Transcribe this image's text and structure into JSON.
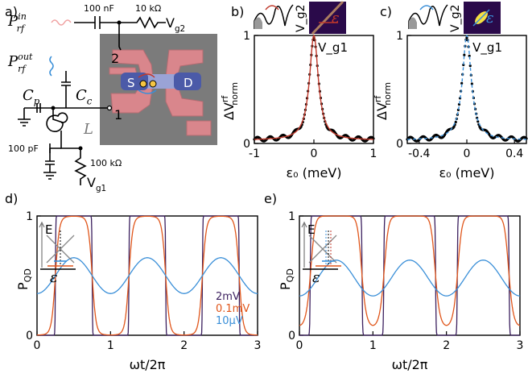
{
  "panels": {
    "a": "a)",
    "b": "b)",
    "c": "c)",
    "d": "d)",
    "e": "e)"
  },
  "circuit": {
    "p_in": "P",
    "p_in_sup": "in",
    "p_in_sub": "rf",
    "p_out": "P",
    "p_out_sup": "out",
    "p_out_sub": "rf",
    "cap_top": "100 nF",
    "res_top": "10 kΩ",
    "vg2": "V",
    "vg2_sub": "g2",
    "cp": "C",
    "cp_sub": "p",
    "cc": "C",
    "cc_sub": "c",
    "inductor": "L",
    "cap_bottom": "100 pF",
    "res_bottom": "100 kΩ",
    "vg1": "V",
    "vg1_sub": "g1",
    "gate1": "1",
    "gate2": "2",
    "source": "S",
    "drain": "D"
  },
  "colors": {
    "red": "#c0392b",
    "blue": "#3a8fd8",
    "orange": "#e0561b",
    "purple": "#3b1f5e",
    "gate_pink": "#d9868c"
  },
  "chart_data": [
    {
      "panel": "b",
      "type": "line",
      "xlabel": "ε₀ (meV)",
      "ylabel": "ΔV_norm^rf",
      "xlim": [
        -1,
        1
      ],
      "ylim": [
        0,
        1
      ],
      "xticks": [
        "-1",
        "0",
        "1"
      ],
      "yticks": [
        "0",
        "1"
      ],
      "inset_label_y": "V_g2",
      "inset_label_x": "V_g1",
      "inset_symbol": "ε",
      "series": [
        {
          "kind": "data-points",
          "color": "#000000",
          "peak_x": 0.0,
          "fwhm": 0.18
        },
        {
          "kind": "fit",
          "color": "#c0392b",
          "peak_x": 0.0,
          "fwhm": 0.18
        }
      ]
    },
    {
      "panel": "c",
      "type": "line",
      "xlabel": "ε₀ (meV)",
      "ylabel": "ΔV_norm^rf",
      "xlim": [
        -0.5,
        0.5
      ],
      "ylim": [
        0,
        1
      ],
      "xticks": [
        "-0.4",
        "0",
        "0.4"
      ],
      "yticks": [
        "0",
        "1"
      ],
      "inset_label_y": "V_g2",
      "inset_label_x": "V_g1",
      "inset_symbol": "ε",
      "series": [
        {
          "kind": "data-points",
          "color": "#000000",
          "peak_x": 0.0,
          "fwhm": 0.09
        },
        {
          "kind": "fit",
          "color": "#3a8fd8",
          "peak_x": 0.0,
          "fwhm": 0.09
        }
      ]
    },
    {
      "panel": "d",
      "type": "line",
      "xlabel": "ωt/2π",
      "ylabel": "P_QD",
      "xlim": [
        0,
        3
      ],
      "ylim": [
        0,
        1
      ],
      "xticks": [
        "0",
        "1",
        "2",
        "3"
      ],
      "yticks": [
        "0",
        "1"
      ],
      "inset_axis": "E",
      "inset_symbol": "ε",
      "series": [
        {
          "name": "2mV",
          "color": "#3b1f5e",
          "offset": 0.0,
          "amplitude": 0.5,
          "sharpness": 60
        },
        {
          "name": "0.1mV",
          "color": "#e0561b",
          "offset": 0.0,
          "amplitude": 0.5,
          "sharpness": 6
        },
        {
          "name": "10μV",
          "color": "#3a8fd8",
          "offset": 0.0,
          "amplitude": 0.15,
          "sharpness": 1
        }
      ]
    },
    {
      "panel": "e",
      "type": "line",
      "xlabel": "ωt/2π",
      "ylabel": "P_QD",
      "xlim": [
        0,
        3
      ],
      "ylim": [
        0,
        1
      ],
      "xticks": [
        "0",
        "1",
        "2",
        "3"
      ],
      "yticks": [
        "0",
        "1"
      ],
      "inset_axis": "E",
      "inset_symbol": "ε",
      "series": [
        {
          "name": "2mV",
          "color": "#3b1f5e",
          "offset": 0.6,
          "amplitude": 0.5,
          "sharpness": 60
        },
        {
          "name": "0.1mV",
          "color": "#e0561b",
          "offset": 0.6,
          "amplitude": 0.5,
          "sharpness": 6
        },
        {
          "name": "10μV",
          "color": "#3a8fd8",
          "offset": 0.6,
          "amplitude": 0.15,
          "sharpness": 1
        }
      ]
    }
  ]
}
